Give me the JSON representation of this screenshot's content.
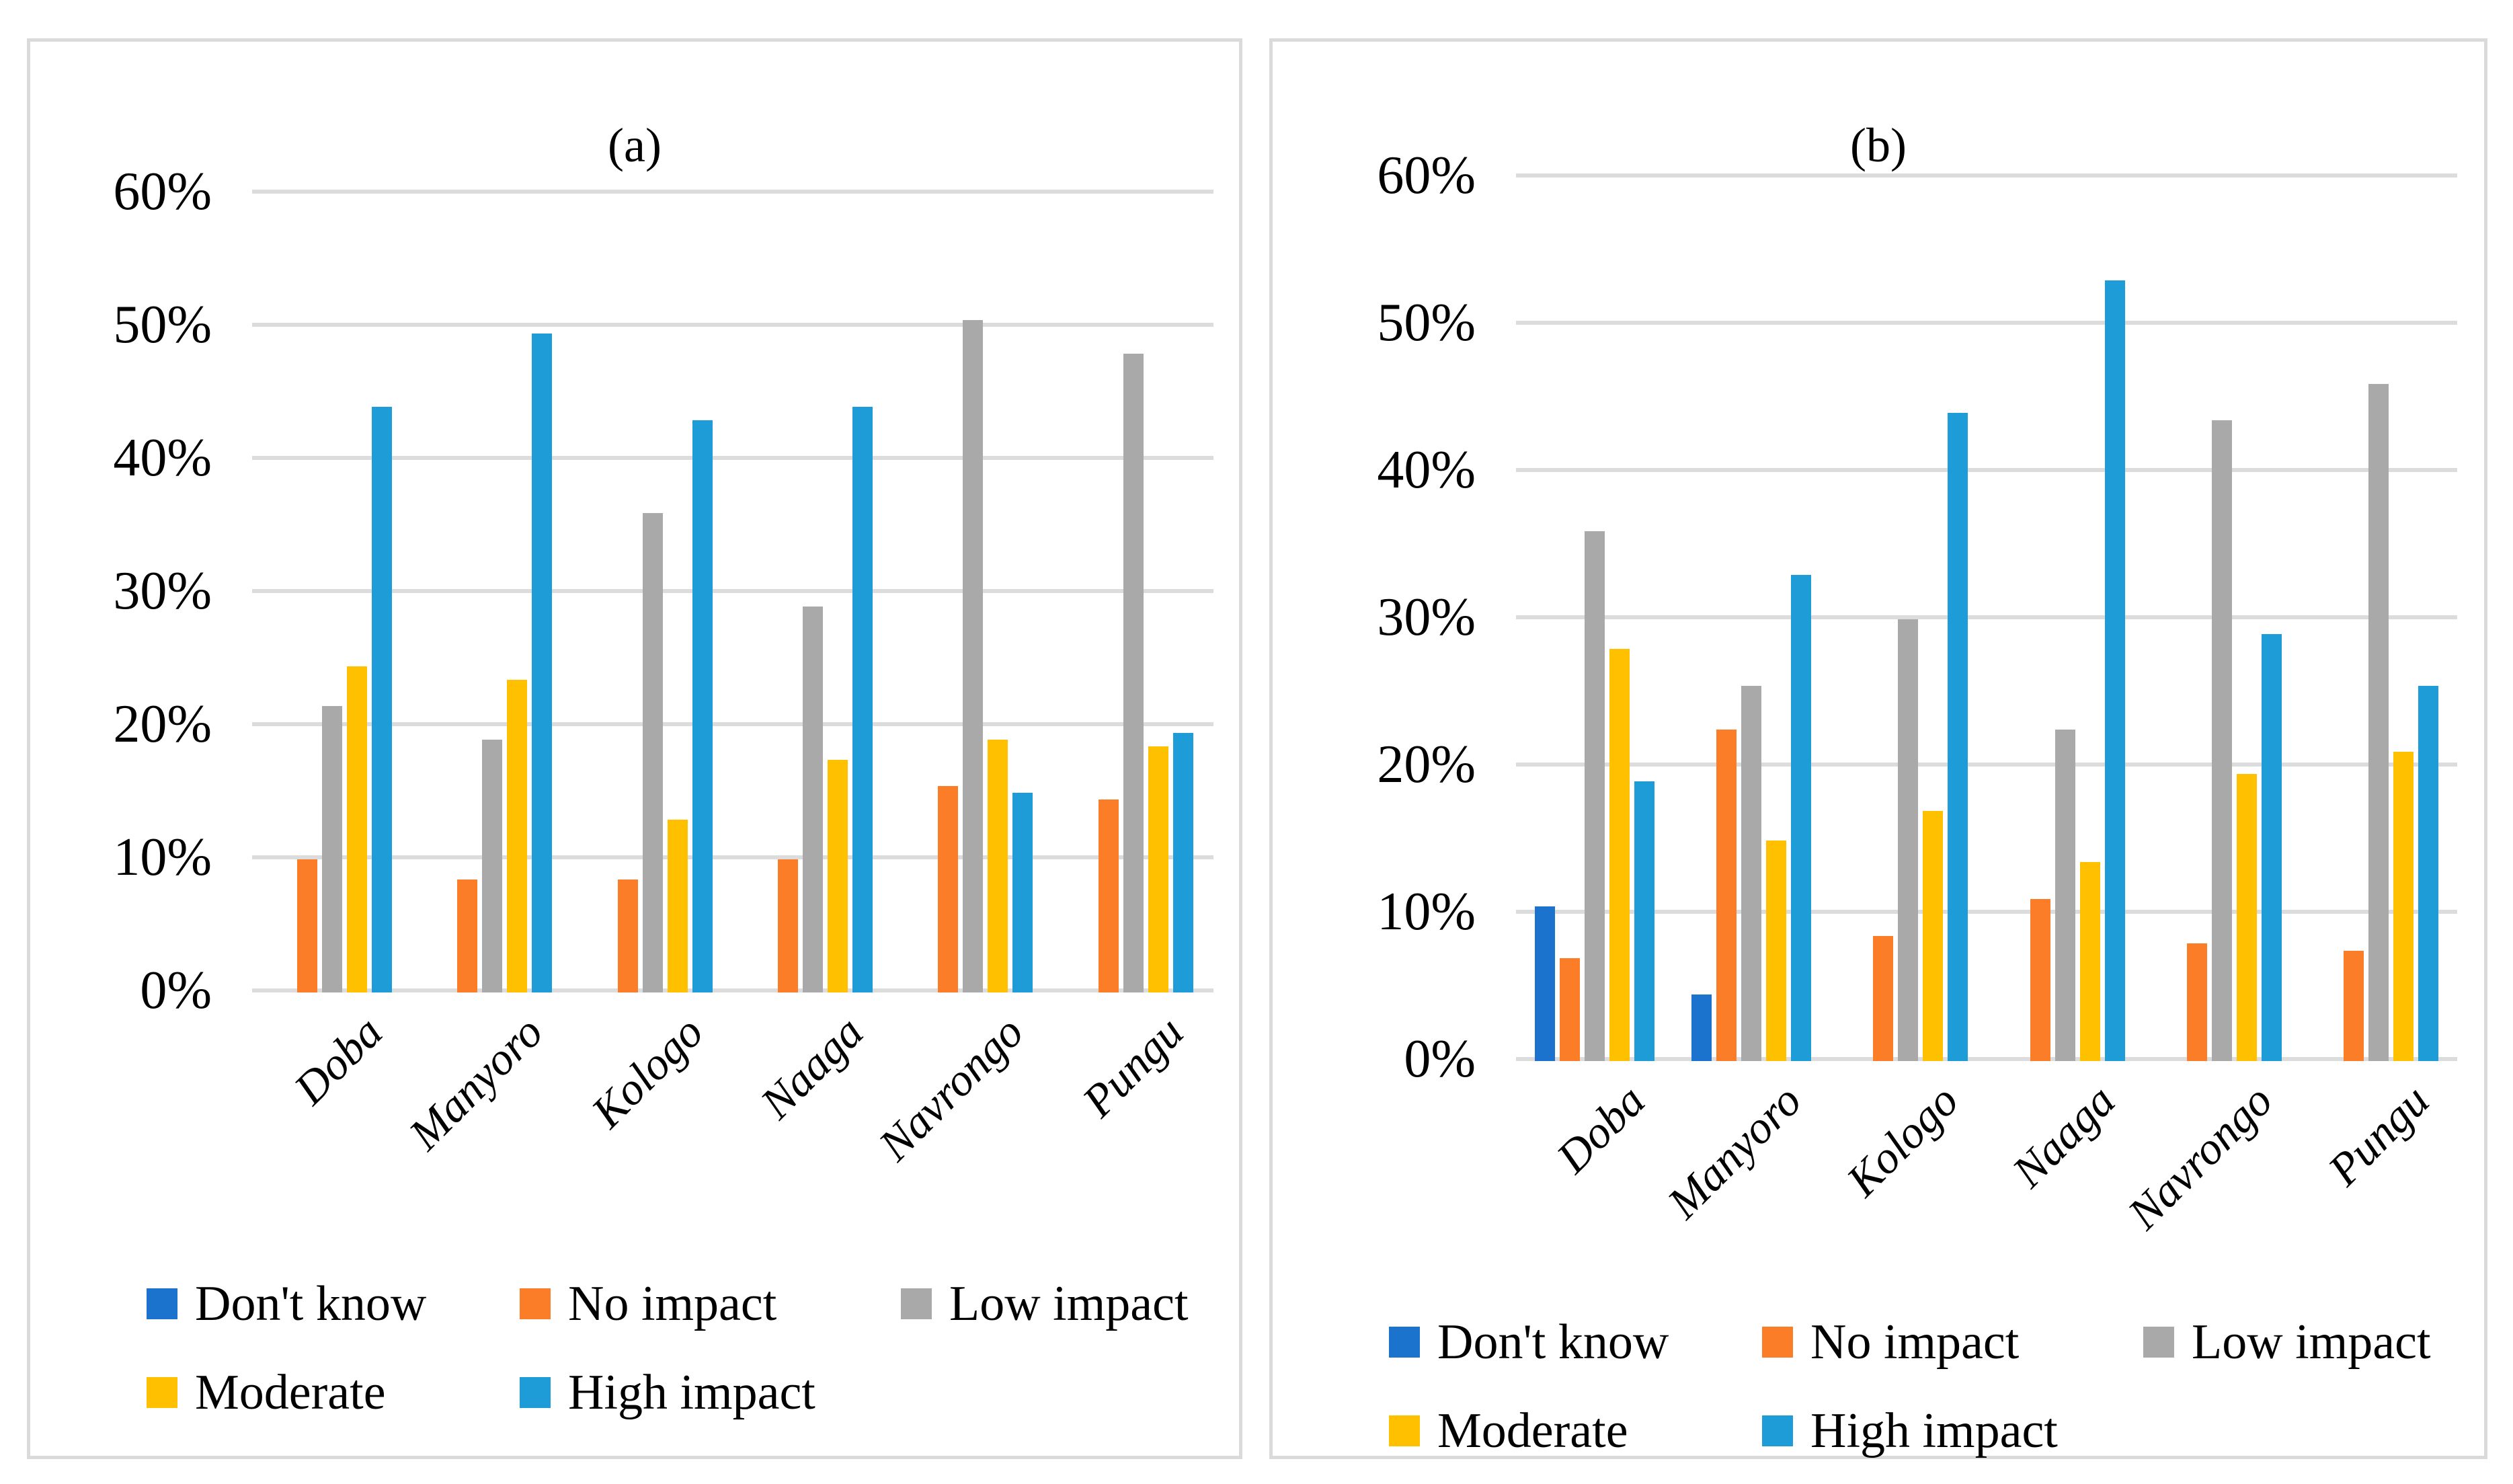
{
  "page": {
    "background": "#FFFFFF",
    "panel_border_color": "#DADADA",
    "gridline_color": "#DCDCDC"
  },
  "chart_data": [
    {
      "type": "bar",
      "title": "(a)",
      "categories": [
        "Doba",
        "Manyoro",
        "Kologo",
        "Naaga",
        "Navrongo",
        "Pungu"
      ],
      "series": [
        {
          "name": "Don't know",
          "color": "#1B73CE",
          "values": [
            0,
            0,
            0,
            0,
            0,
            0
          ]
        },
        {
          "name": "No impact",
          "color": "#FB7D27",
          "values": [
            10,
            8.5,
            8.5,
            10,
            15.5,
            14.5
          ]
        },
        {
          "name": "Low impact",
          "color": "#A9A9A9",
          "values": [
            21.5,
            19,
            36,
            29,
            50.5,
            48
          ]
        },
        {
          "name": "Moderate",
          "color": "#FFC000",
          "values": [
            24.5,
            23.5,
            13,
            17.5,
            19,
            18.5
          ]
        },
        {
          "name": "High impact",
          "color": "#1E9CD8",
          "values": [
            44,
            49.5,
            43,
            44,
            15,
            19.5
          ]
        }
      ],
      "yticks": [
        "0%",
        "10%",
        "20%",
        "30%",
        "40%",
        "50%",
        "60%"
      ],
      "ylim": [
        0,
        60
      ],
      "grid": true,
      "legend_position": "bottom-left",
      "xlabel": "",
      "ylabel": ""
    },
    {
      "type": "bar",
      "title": "(b)",
      "categories": [
        "Doba",
        "Manyoro",
        "Kologo",
        "Naaga",
        "Navrongo",
        "Pungu"
      ],
      "series": [
        {
          "name": "Don't know",
          "color": "#1B73CE",
          "values": [
            10.5,
            4.5,
            0,
            0,
            0,
            0
          ]
        },
        {
          "name": "No impact",
          "color": "#FB7D27",
          "values": [
            7,
            22.5,
            8.5,
            11,
            8,
            7.5
          ]
        },
        {
          "name": "Low impact",
          "color": "#A9A9A9",
          "values": [
            36,
            25.5,
            30,
            22.5,
            43.5,
            46
          ]
        },
        {
          "name": "Moderate",
          "color": "#FFC000",
          "values": [
            28,
            15,
            17,
            13.5,
            19.5,
            21
          ]
        },
        {
          "name": "High impact",
          "color": "#1E9CD8",
          "values": [
            19,
            33,
            44,
            53,
            29,
            25.5
          ]
        }
      ],
      "yticks": [
        "0%",
        "10%",
        "20%",
        "30%",
        "40%",
        "50%",
        "60%"
      ],
      "ylim": [
        0,
        60
      ],
      "grid": true,
      "legend_position": "bottom-left",
      "xlabel": "",
      "ylabel": ""
    }
  ]
}
